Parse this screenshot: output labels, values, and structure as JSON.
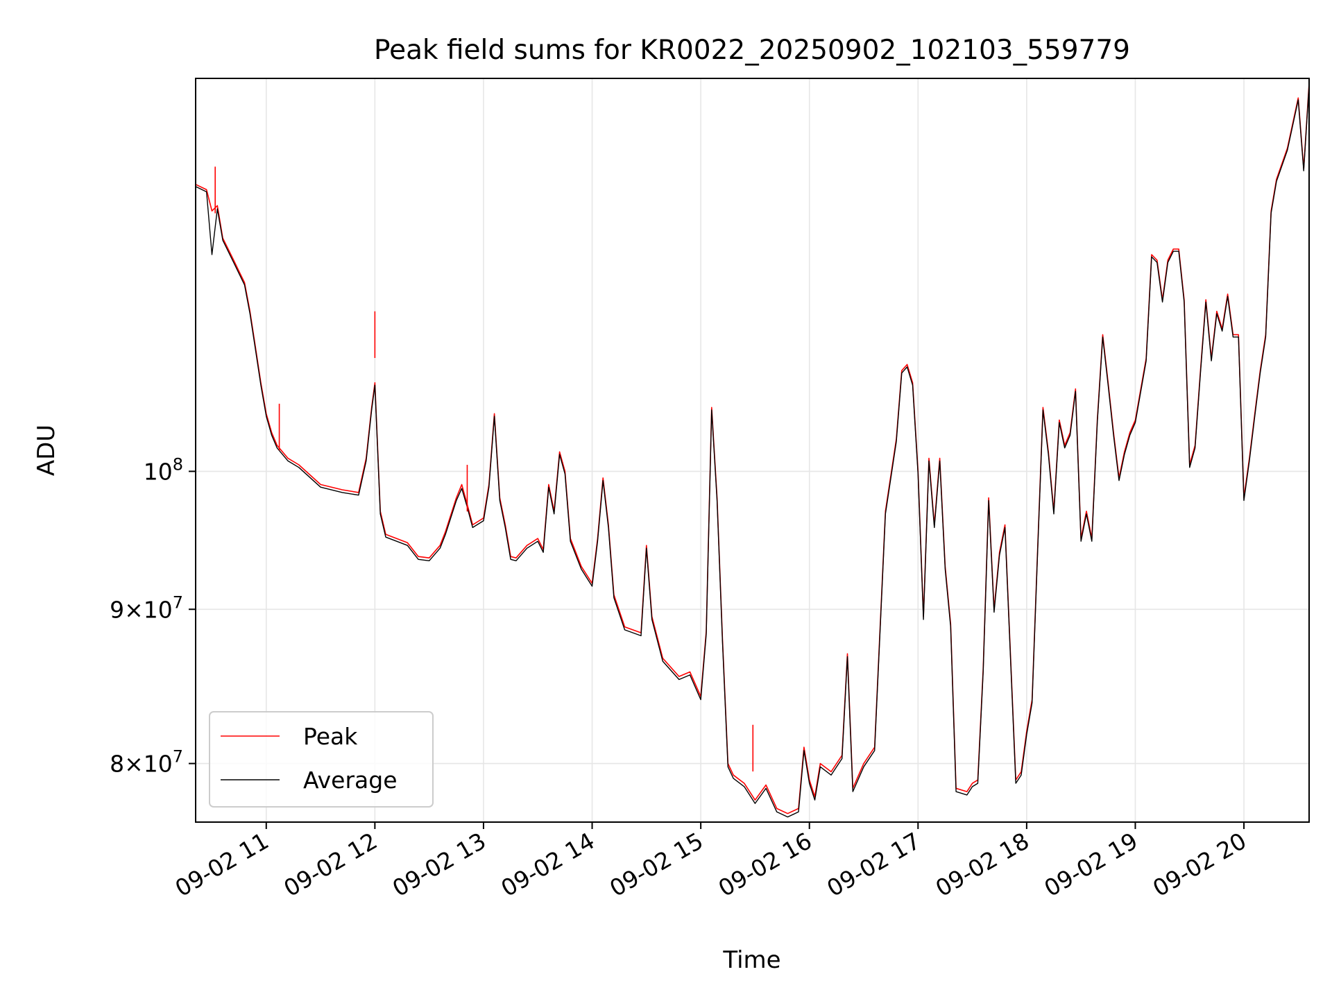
{
  "chart_data": {
    "type": "line",
    "title": "Peak field sums for KR0022_20250902_102103_559779",
    "xlabel": "Time",
    "ylabel": "ADU",
    "x_unit": "hours (clock time on 2025-09-02)",
    "xlim": [
      10.35,
      20.6
    ],
    "ylim": [
      76500000,
      135000000
    ],
    "y_scale": "log",
    "grid": true,
    "legend_position": "lower left",
    "x_ticks": [
      {
        "value": 11,
        "label": "09-02 11"
      },
      {
        "value": 12,
        "label": "09-02 12"
      },
      {
        "value": 13,
        "label": "09-02 13"
      },
      {
        "value": 14,
        "label": "09-02 14"
      },
      {
        "value": 15,
        "label": "09-02 15"
      },
      {
        "value": 16,
        "label": "09-02 16"
      },
      {
        "value": 17,
        "label": "09-02 17"
      },
      {
        "value": 18,
        "label": "09-02 18"
      },
      {
        "value": 19,
        "label": "09-02 19"
      },
      {
        "value": 20,
        "label": "09-02 20"
      }
    ],
    "y_ticks": [
      {
        "value": 80000000,
        "base": "8×10",
        "exp": "7"
      },
      {
        "value": 90000000,
        "base": "9×10",
        "exp": "7"
      },
      {
        "value": 100000000,
        "base": "10",
        "exp": "8"
      }
    ],
    "x": [
      10.35,
      10.45,
      10.5,
      10.55,
      10.6,
      10.7,
      10.75,
      10.8,
      10.85,
      10.9,
      10.95,
      11.0,
      11.05,
      11.1,
      11.2,
      11.3,
      11.5,
      11.7,
      11.85,
      11.92,
      11.97,
      12.0,
      12.05,
      12.1,
      12.2,
      12.3,
      12.4,
      12.5,
      12.6,
      12.65,
      12.75,
      12.8,
      12.85,
      12.9,
      13.0,
      13.05,
      13.1,
      13.15,
      13.2,
      13.25,
      13.3,
      13.4,
      13.5,
      13.55,
      13.6,
      13.65,
      13.7,
      13.75,
      13.8,
      13.9,
      14.0,
      14.05,
      14.1,
      14.15,
      14.2,
      14.3,
      14.45,
      14.5,
      14.55,
      14.65,
      14.8,
      14.9,
      15.0,
      15.05,
      15.1,
      15.15,
      15.2,
      15.25,
      15.3,
      15.4,
      15.5,
      15.6,
      15.7,
      15.8,
      15.9,
      15.95,
      16.0,
      16.05,
      16.1,
      16.2,
      16.3,
      16.35,
      16.4,
      16.5,
      16.6,
      16.7,
      16.8,
      16.85,
      16.9,
      16.95,
      17.0,
      17.05,
      17.1,
      17.15,
      17.2,
      17.25,
      17.3,
      17.35,
      17.45,
      17.5,
      17.55,
      17.6,
      17.65,
      17.7,
      17.75,
      17.8,
      17.9,
      17.95,
      18.0,
      18.05,
      18.1,
      18.15,
      18.2,
      18.25,
      18.3,
      18.35,
      18.4,
      18.45,
      18.5,
      18.55,
      18.6,
      18.65,
      18.7,
      18.75,
      18.8,
      18.85,
      18.9,
      18.95,
      19.0,
      19.1,
      19.15,
      19.2,
      19.25,
      19.3,
      19.35,
      19.4,
      19.45,
      19.5,
      19.55,
      19.6,
      19.65,
      19.7,
      19.75,
      19.8,
      19.85,
      19.9,
      19.95,
      20.0,
      20.05,
      20.1,
      20.15,
      20.2,
      20.25,
      20.3,
      20.4,
      20.5,
      20.55,
      20.6
    ],
    "series": [
      {
        "name": "Peak",
        "color": "#ff0000",
        "values": [
          124500000,
          124000000,
          122000000,
          122500000,
          119500000,
          117500000,
          116500000,
          115500000,
          113000000,
          110000000,
          107000000,
          104500000,
          103000000,
          102000000,
          101000000,
          100500000,
          99000000,
          98600000,
          98400000,
          101000000,
          105000000,
          107000000,
          97000000,
          95300000,
          95000000,
          94700000,
          93700000,
          93600000,
          94500000,
          95500000,
          98000000,
          99000000,
          97500000,
          96000000,
          96500000,
          99000000,
          104500000,
          98000000,
          96000000,
          93700000,
          93600000,
          94500000,
          95000000,
          94200000,
          99000000,
          97000000,
          101500000,
          100000000,
          95000000,
          93000000,
          91800000,
          95000000,
          99500000,
          96000000,
          91000000,
          88800000,
          88400000,
          94500000,
          89500000,
          86700000,
          85500000,
          85800000,
          84200000,
          88500000,
          105000000,
          98000000,
          88000000,
          80000000,
          79300000,
          78800000,
          77800000,
          78700000,
          77300000,
          77000000,
          77300000,
          81000000,
          79000000,
          78000000,
          80000000,
          79500000,
          80500000,
          87000000,
          78500000,
          80000000,
          81000000,
          97000000,
          102500000,
          108000000,
          108500000,
          107000000,
          100000000,
          89500000,
          101000000,
          96000000,
          101000000,
          93000000,
          89000000,
          78500000,
          78300000,
          78800000,
          79000000,
          86000000,
          98000000,
          90000000,
          94000000,
          96000000,
          79000000,
          79500000,
          82000000,
          84000000,
          94000000,
          105000000,
          101500000,
          97000000,
          104000000,
          102000000,
          103000000,
          106500000,
          95000000,
          97000000,
          95000000,
          104000000,
          111000000,
          107000000,
          103000000,
          99500000,
          101500000,
          103000000,
          104000000,
          109000000,
          118000000,
          117500000,
          114000000,
          117500000,
          118500000,
          118500000,
          114000000,
          100500000,
          102000000,
          108000000,
          114000000,
          109000000,
          113000000,
          111500000,
          114500000,
          111000000,
          111000000,
          98000000,
          101000000,
          104500000,
          108000000,
          111000000,
          122000000,
          125000000,
          128000000,
          133000000,
          126000000,
          134500000
        ]
      },
      {
        "name": "Average",
        "color": "#000000",
        "values": [
          124300000,
          123800000,
          118000000,
          122200000,
          119300000,
          117300000,
          116300000,
          115300000,
          112800000,
          109800000,
          106800000,
          104300000,
          102800000,
          101800000,
          100800000,
          100300000,
          98800000,
          98400000,
          98200000,
          100800000,
          104800000,
          106800000,
          96800000,
          95100000,
          94800000,
          94500000,
          93500000,
          93400000,
          94300000,
          95300000,
          97800000,
          98700000,
          97300000,
          95800000,
          96300000,
          98800000,
          104300000,
          97800000,
          95800000,
          93500000,
          93400000,
          94300000,
          94800000,
          94000000,
          98800000,
          96800000,
          101300000,
          99800000,
          94800000,
          92800000,
          91600000,
          94800000,
          99300000,
          95800000,
          90800000,
          88600000,
          88200000,
          94300000,
          89300000,
          86500000,
          85300000,
          85600000,
          84000000,
          88300000,
          104800000,
          97800000,
          87800000,
          79800000,
          79100000,
          78600000,
          77600000,
          78500000,
          77100000,
          76800000,
          77100000,
          80800000,
          78800000,
          77800000,
          79800000,
          79300000,
          80300000,
          86800000,
          78300000,
          79800000,
          80800000,
          96800000,
          102300000,
          107800000,
          108300000,
          106800000,
          99800000,
          89300000,
          100800000,
          95800000,
          100800000,
          92800000,
          88800000,
          78300000,
          78100000,
          78600000,
          78800000,
          85800000,
          97800000,
          89800000,
          93800000,
          95800000,
          78800000,
          79300000,
          81800000,
          83800000,
          93800000,
          104800000,
          101300000,
          96800000,
          103800000,
          101800000,
          102800000,
          106300000,
          94800000,
          96800000,
          94800000,
          103800000,
          110800000,
          106800000,
          102800000,
          99300000,
          101300000,
          102800000,
          103800000,
          108800000,
          117800000,
          117300000,
          113800000,
          117300000,
          118300000,
          118300000,
          113800000,
          100300000,
          101800000,
          107800000,
          113800000,
          108800000,
          112800000,
          111300000,
          114300000,
          110800000,
          110800000,
          97800000,
          100800000,
          104300000,
          107800000,
          110800000,
          121800000,
          124800000,
          127800000,
          132800000,
          125800000,
          134300000
        ]
      }
    ],
    "spikes": [
      {
        "x": 10.53,
        "value": 126200000,
        "series": "Peak"
      },
      {
        "x": 11.12,
        "value": 105300000,
        "series": "Peak"
      },
      {
        "x": 12.0,
        "value": 113000000,
        "series": "Peak"
      },
      {
        "x": 12.85,
        "value": 100500000,
        "series": "Peak"
      },
      {
        "x": 15.48,
        "value": 82400000,
        "series": "Peak"
      }
    ]
  }
}
